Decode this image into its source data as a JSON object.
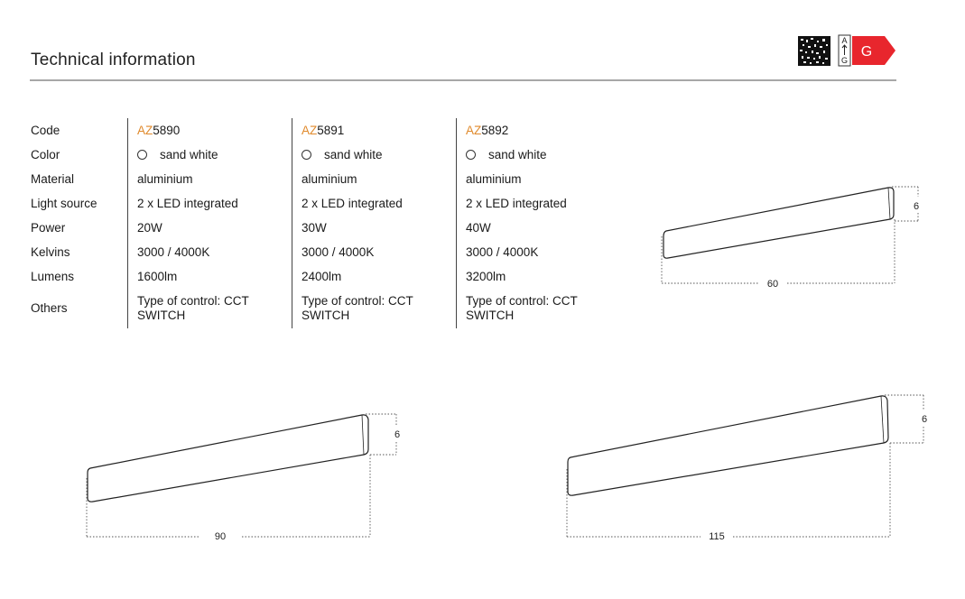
{
  "header": {
    "title": "Technical information",
    "energy_class": {
      "range_top": "A",
      "range_bottom": "G",
      "class": "G",
      "color": "#e8262d"
    }
  },
  "table": {
    "row_labels": [
      "Code",
      "Color",
      "Material",
      "Light source",
      "Power",
      "Kelvins",
      "Lumens",
      "Others"
    ],
    "products": [
      {
        "code_prefix": "AZ",
        "code_number": "5890",
        "color": "sand white",
        "material": "aluminium",
        "light_source": "2 x LED integrated",
        "power": "20W",
        "kelvins": "3000 / 4000K",
        "lumens": "1600lm",
        "others": "Type of control: CCT SWITCH"
      },
      {
        "code_prefix": "AZ",
        "code_number": "5891",
        "color": "sand white",
        "material": "aluminium",
        "light_source": "2 x LED integrated",
        "power": "30W",
        "kelvins": "3000 / 4000K",
        "lumens": "2400lm",
        "others": "Type of control: CCT SWITCH"
      },
      {
        "code_prefix": "AZ",
        "code_number": "5892",
        "color": "sand white",
        "material": "aluminium",
        "light_source": "2 x LED integrated",
        "power": "40W",
        "kelvins": "3000 / 4000K",
        "lumens": "3200lm",
        "others": "Type of control: CCT SWITCH"
      }
    ]
  },
  "drawings": {
    "small": {
      "length": "60",
      "height": "6"
    },
    "medium": {
      "length": "90",
      "height": "6"
    },
    "large": {
      "length": "115",
      "height": "6"
    }
  },
  "colors": {
    "accent": "#e08a2c",
    "rule": "#a7a7a7"
  }
}
